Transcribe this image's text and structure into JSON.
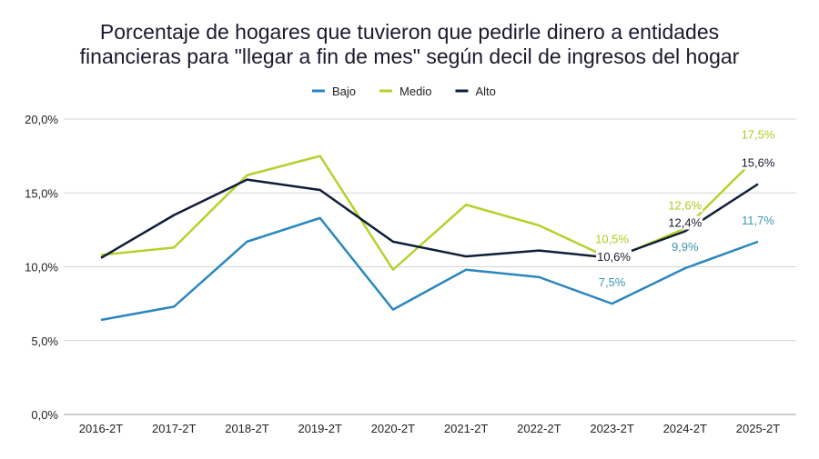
{
  "chart_data": {
    "type": "line",
    "title_lines": [
      "Porcentaje de hogares que tuvieron que pedirle dinero a entidades",
      "financieras para \"llegar a fin de mes\" según decil de ingresos del hogar"
    ],
    "categories": [
      "2016-2T",
      "2017-2T",
      "2018-2T",
      "2019-2T",
      "2020-2T",
      "2021-2T",
      "2022-2T",
      "2023-2T",
      "2024-2T",
      "2025-2T"
    ],
    "ylim": [
      0,
      20
    ],
    "yticks": [
      0,
      5,
      10,
      15,
      20
    ],
    "ytick_labels": [
      "0,0%",
      "5,0%",
      "10,0%",
      "15,0%",
      "20,0%"
    ],
    "grid": true,
    "legend_position": "top",
    "series": [
      {
        "name": "Bajo",
        "color": "#2a87bd",
        "label_color": "#3a97b0",
        "values": [
          6.4,
          7.3,
          11.7,
          13.3,
          7.1,
          9.8,
          9.3,
          7.5,
          9.9,
          11.7
        ],
        "data_labels": {
          "7": "7,5%",
          "8": "9,9%",
          "9": "11,7%"
        }
      },
      {
        "name": "Medio",
        "color": "#b7d12c",
        "label_color": "#b2c923",
        "values": [
          10.8,
          11.3,
          16.2,
          17.5,
          9.8,
          14.2,
          12.8,
          10.5,
          12.6,
          17.5
        ],
        "data_labels": {
          "7": "10,5%",
          "8": "12,6%",
          "9": "17,5%"
        }
      },
      {
        "name": "Alto",
        "color": "#0f1d38",
        "label_color": "#1a1a2e",
        "values": [
          10.6,
          13.5,
          15.9,
          15.2,
          11.7,
          10.7,
          11.1,
          10.6,
          12.4,
          15.6
        ],
        "data_labels": {
          "7": "10,6%",
          "8": "12,4%",
          "9": "15,6%"
        }
      }
    ]
  }
}
